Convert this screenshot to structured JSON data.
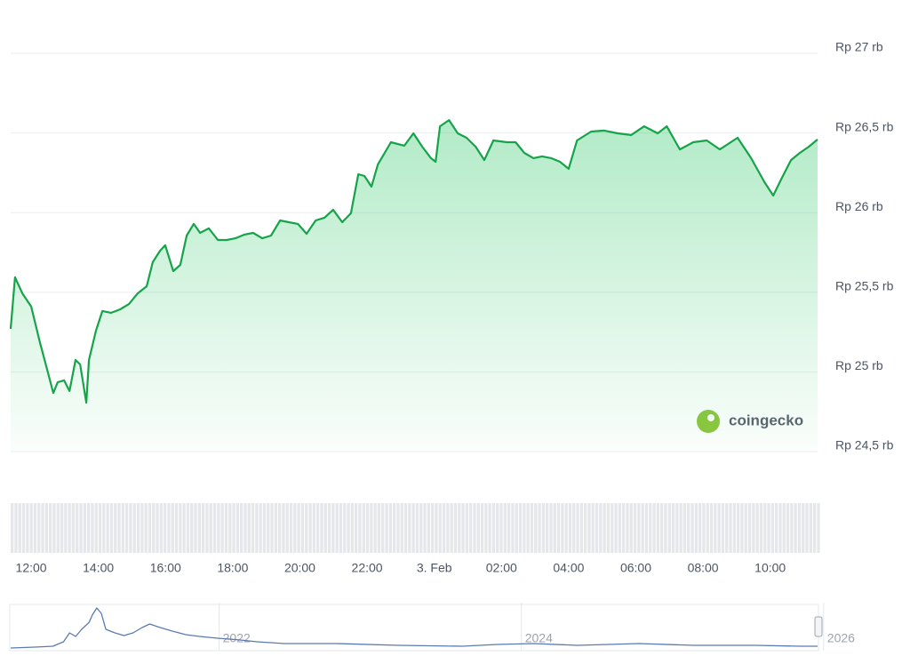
{
  "chart_data": [
    {
      "type": "line",
      "color": "#16a34a",
      "grid": true,
      "watermark": "coingecko",
      "x": [
        11.39,
        11.52,
        11.74,
        12.0,
        12.26,
        12.4,
        12.66,
        12.79,
        12.98,
        13.14,
        13.32,
        13.46,
        13.64,
        13.72,
        13.93,
        14.12,
        14.38,
        14.65,
        14.91,
        15.17,
        15.44,
        15.62,
        15.84,
        15.99,
        16.23,
        16.44,
        16.63,
        16.84,
        17.03,
        17.29,
        17.56,
        17.82,
        18.08,
        18.35,
        18.61,
        18.88,
        19.14,
        19.41,
        19.67,
        19.94,
        20.2,
        20.47,
        20.73,
        20.99,
        21.26,
        21.52,
        21.74,
        21.92,
        22.13,
        22.32,
        22.71,
        23.11,
        23.38,
        23.64,
        23.9,
        24.04,
        24.17,
        24.44,
        24.7,
        24.96,
        25.23,
        25.49,
        25.76,
        26.16,
        26.42,
        26.68,
        26.95,
        27.21,
        27.48,
        27.74,
        28.0,
        28.25,
        28.67,
        29.06,
        29.46,
        29.86,
        30.25,
        30.65,
        30.92,
        31.31,
        31.71,
        32.11,
        32.5,
        33.03,
        33.43,
        33.83,
        34.09,
        34.35,
        34.62,
        34.88,
        35.15,
        35.41
      ],
      "series": [
        {
          "values": [
            25270,
            25594,
            25493,
            25410,
            25186,
            25075,
            24868,
            24935,
            24947,
            24880,
            25075,
            25047,
            24807,
            25075,
            25259,
            25382,
            25371,
            25393,
            25426,
            25493,
            25538,
            25689,
            25761,
            25795,
            25633,
            25672,
            25856,
            25929,
            25873,
            25901,
            25828,
            25828,
            25839,
            25862,
            25873,
            25839,
            25856,
            25951,
            25940,
            25929,
            25867,
            25951,
            25968,
            26018,
            25940,
            25996,
            26241,
            26230,
            26163,
            26302,
            26442,
            26420,
            26498,
            26414,
            26342,
            26319,
            26542,
            26581,
            26498,
            26470,
            26414,
            26330,
            26453,
            26442,
            26442,
            26375,
            26342,
            26353,
            26342,
            26319,
            26275,
            26453,
            26509,
            26515,
            26498,
            26487,
            26542,
            26498,
            26542,
            26397,
            26442,
            26453,
            26397,
            26470,
            26342,
            26191,
            26107,
            26219,
            26330,
            26375,
            26414,
            26459
          ]
        }
      ],
      "xlim": [
        11.39,
        35.41
      ],
      "xticks": [
        {
          "value": 12,
          "label": "12:00"
        },
        {
          "value": 14,
          "label": "14:00"
        },
        {
          "value": 16,
          "label": "16:00"
        },
        {
          "value": 18,
          "label": "18:00"
        },
        {
          "value": 20,
          "label": "20:00"
        },
        {
          "value": 22,
          "label": "22:00"
        },
        {
          "value": 24,
          "label": "3. Feb"
        },
        {
          "value": 26,
          "label": "02:00"
        },
        {
          "value": 28,
          "label": "04:00"
        },
        {
          "value": 30,
          "label": "06:00"
        },
        {
          "value": 32,
          "label": "08:00"
        },
        {
          "value": 34,
          "label": "10:00"
        }
      ],
      "ylim": [
        24500,
        27000
      ],
      "yticks": [
        {
          "value": 27000,
          "label": "Rp 27 rb"
        },
        {
          "value": 26500,
          "label": "Rp 26,5 rb"
        },
        {
          "value": 26000,
          "label": "Rp 26 rb"
        },
        {
          "value": 25500,
          "label": "Rp 25,5 rb"
        },
        {
          "value": 25000,
          "label": "Rp 25 rb"
        },
        {
          "value": 24500,
          "label": "Rp 24,5 rb"
        }
      ]
    },
    {
      "type": "line",
      "color": "#5b7bb0",
      "x": [
        2020.62,
        2020.78,
        2020.9,
        2020.97,
        2021.01,
        2021.05,
        2021.09,
        2021.14,
        2021.16,
        2021.19,
        2021.22,
        2021.25,
        2021.31,
        2021.37,
        2021.43,
        2021.49,
        2021.54,
        2021.61,
        2021.69,
        2021.78,
        2021.87,
        2021.99,
        2022.14,
        2022.25,
        2022.43,
        2022.78,
        2023.19,
        2023.61,
        2023.84,
        2024.08,
        2024.37,
        2024.78,
        2025.14,
        2025.55,
        2025.84,
        2025.96
      ],
      "series": [
        {
          "values": [
            6600,
            13200,
            19800,
            52800,
            118800,
            92400,
            145200,
            198000,
            250800,
            303600,
            264000,
            145200,
            118800,
            99000,
            118800,
            158400,
            184800,
            158400,
            132000,
            105600,
            92400,
            79200,
            66000,
            52800,
            39600,
            39600,
            26400,
            19800,
            33000,
            39600,
            26400,
            39600,
            26400,
            26400,
            19800,
            19800
          ]
        }
      ],
      "xlim": [
        2020.62,
        2025.96
      ],
      "xticks": [
        2022,
        2024,
        2026
      ],
      "ylim": [
        0,
        330000
      ]
    }
  ]
}
